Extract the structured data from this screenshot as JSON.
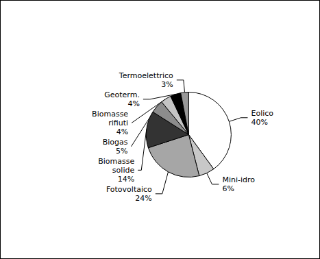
{
  "chart_data": {
    "type": "pie",
    "categories": [
      "Eolico",
      "Mini-idro",
      "Fotovoltaico",
      "Biomasse solide",
      "Biogas",
      "Biomasse rifiuti",
      "Geoterm.",
      "Termoelettrico"
    ],
    "values": [
      40,
      6,
      24,
      14,
      5,
      4,
      4,
      3
    ],
    "value_labels": [
      "40%",
      "6%",
      "24%",
      "14%",
      "5%",
      "4%",
      "4%",
      "3%"
    ],
    "colors": [
      "#ffffff",
      "#c8c8c8",
      "#a6a6a6",
      "#333333",
      "#8c8c8c",
      "#c4c4c4",
      "#000000",
      "#999999"
    ],
    "data_labels": true
  }
}
